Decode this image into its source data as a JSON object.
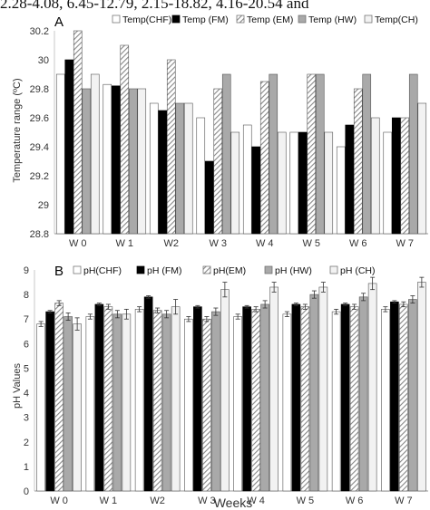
{
  "caption_fragment": "2.28-4.08,  6.45-12.79,  2.15-18.82,  4.16-20.54  and",
  "colors": {
    "CHF": "#ffffff",
    "FM": "#000000",
    "EM_hatch": "#9a9a9a",
    "HW": "#a9a9a9",
    "CH": "#f2f2f2",
    "stroke": "#555555"
  },
  "chart_data": [
    {
      "panel_label": "A",
      "type": "bar",
      "ylabel": "Temperature range (ºC)",
      "ylim": [
        28.8,
        30.2
      ],
      "yticks": [
        "28.8",
        "29",
        "29.2",
        "29.4",
        "29.6",
        "29.8",
        "30",
        "30.2"
      ],
      "categories": [
        "W 0",
        "W 1",
        "W2",
        "W 3",
        "W 4",
        "W 5",
        "W 6",
        "W 7"
      ],
      "legend_placement": "top",
      "grid": false,
      "series": [
        {
          "name": "Temp(CHF)",
          "key": "CHF",
          "values": [
            29.9,
            29.83,
            29.7,
            29.6,
            29.55,
            29.5,
            29.4,
            29.5
          ]
        },
        {
          "name": "Temp (FM)",
          "key": "FM",
          "values": [
            30.0,
            29.82,
            29.65,
            29.3,
            29.4,
            29.5,
            29.55,
            29.6
          ]
        },
        {
          "name": "Temp (EM)",
          "key": "EM",
          "values": [
            30.2,
            30.1,
            30.0,
            29.8,
            29.85,
            29.9,
            29.8,
            29.6
          ]
        },
        {
          "name": "Temp (HW)",
          "key": "HW",
          "values": [
            29.8,
            29.8,
            29.7,
            29.9,
            29.9,
            29.9,
            29.9,
            29.9
          ]
        },
        {
          "name": "Temp(CH)",
          "key": "CH",
          "values": [
            29.9,
            29.8,
            29.7,
            29.5,
            29.5,
            29.5,
            29.6,
            29.7
          ]
        }
      ]
    },
    {
      "panel_label": "B",
      "type": "bar",
      "ylabel": "pH Values",
      "xlabel": "Weeks",
      "ylim": [
        0,
        9
      ],
      "yticks": [
        "0",
        "1",
        "2",
        "3",
        "4",
        "5",
        "6",
        "7",
        "8",
        "9"
      ],
      "categories": [
        "W 0",
        "W 1",
        "W2",
        "W 3",
        "W 4",
        "W 5",
        "W 6",
        "W 7"
      ],
      "legend_placement": "top",
      "grid": false,
      "error_bars": true,
      "series": [
        {
          "name": "pH(CHF)",
          "key": "CHF",
          "values": [
            6.8,
            7.1,
            7.4,
            7.0,
            7.1,
            7.2,
            7.3,
            7.4
          ],
          "errors": [
            0.1,
            0.1,
            0.1,
            0.1,
            0.1,
            0.1,
            0.1,
            0.1
          ]
        },
        {
          "name": "pH (FM)",
          "key": "FM",
          "values": [
            7.3,
            7.6,
            7.9,
            7.5,
            7.5,
            7.6,
            7.6,
            7.7
          ],
          "errors": [
            0.05,
            0.05,
            0.05,
            0.05,
            0.05,
            0.05,
            0.05,
            0.05
          ]
        },
        {
          "name": "pH(EM)",
          "key": "EM",
          "values": [
            7.65,
            7.5,
            7.35,
            7.0,
            7.4,
            7.5,
            7.5,
            7.6
          ],
          "errors": [
            0.1,
            0.1,
            0.1,
            0.1,
            0.1,
            0.1,
            0.1,
            0.1
          ]
        },
        {
          "name": "pH (HW)",
          "key": "HW",
          "values": [
            7.1,
            7.2,
            7.2,
            7.3,
            7.6,
            8.0,
            7.9,
            7.8
          ],
          "errors": [
            0.15,
            0.15,
            0.15,
            0.15,
            0.15,
            0.15,
            0.15,
            0.15
          ]
        },
        {
          "name": "pH (CH)",
          "key": "CH",
          "values": [
            6.8,
            7.2,
            7.5,
            8.2,
            8.3,
            8.3,
            8.45,
            8.5
          ],
          "errors": [
            0.25,
            0.2,
            0.3,
            0.3,
            0.2,
            0.2,
            0.25,
            0.2
          ]
        }
      ]
    }
  ]
}
